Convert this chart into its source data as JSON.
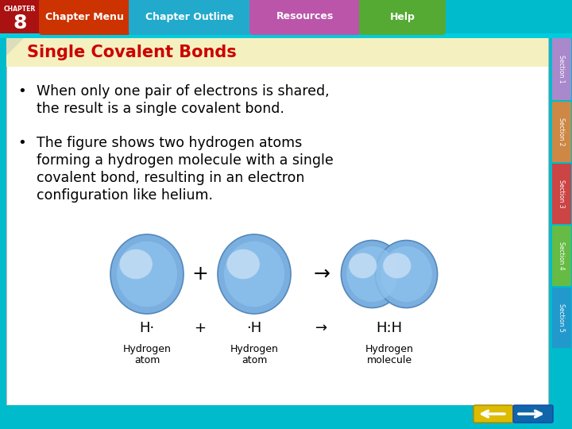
{
  "title": "Single Covalent Bonds",
  "title_color": "#CC0000",
  "title_bg": "#F5F0C0",
  "bg_color": "#FFFFFF",
  "top_bar_color": "#00BBCC",
  "chapter_num": "8",
  "chapter_bg": "#AA1111",
  "nav_labels": [
    "Chapter Menu",
    "Chapter Outline",
    "Resources",
    "Help"
  ],
  "nav_colors": [
    "#CC3300",
    "#22AACC",
    "#BB55AA",
    "#55AA33"
  ],
  "bullet1_line1": "When only one pair of electrons is shared,",
  "bullet1_line2": "the result is a single covalent bond.",
  "bullet2_line1": "The figure shows two hydrogen atoms",
  "bullet2_line2": "forming a hydrogen molecule with a single",
  "bullet2_line3": "covalent bond, resulting in an electron",
  "bullet2_line4": "configuration like helium.",
  "atom1_formula": "H·",
  "atom2_formula": "·H",
  "mol_formula": "H:H",
  "caption1": "Hydrogen",
  "caption1b": "atom",
  "caption2": "Hydrogen",
  "caption2b": "atom",
  "caption3": "Hydrogen",
  "caption3b": "molecule",
  "atom_base": "#7AAFE0",
  "atom_mid": "#90C4EE",
  "atom_highlight": "#C8DFF5",
  "atom_edge": "#5588BB",
  "side_colors": [
    "#AA88CC",
    "#CC8844",
    "#CC4444",
    "#66BB44",
    "#2299CC"
  ],
  "side_labels": [
    "Section 1",
    "Section 2",
    "Section 3",
    "Section 4",
    "Section 5"
  ],
  "nav_arrow_left_color": "#DDBB00",
  "nav_arrow_right_color": "#1166AA"
}
